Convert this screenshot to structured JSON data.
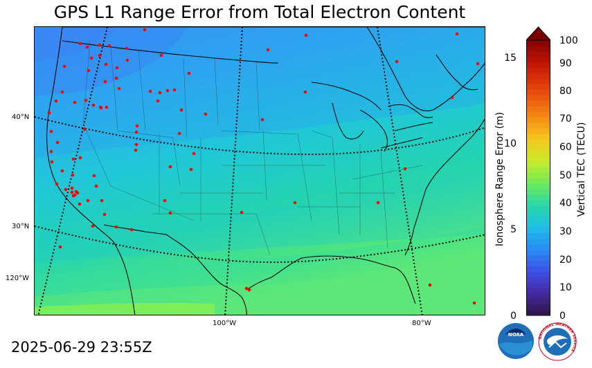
{
  "title": "GPS L1 Range Error from Total Electron Content",
  "timestamp": "2025-06-29 23:55Z",
  "map": {
    "lat_labels": [
      {
        "text": "40°N"
      },
      {
        "text": "30°N"
      },
      {
        "text": "120°W"
      }
    ],
    "lon_labels": [
      {
        "text": "100°W"
      },
      {
        "text": "80°W"
      }
    ],
    "station_color": "#ff0000"
  },
  "colorbar": {
    "left_label": "Ionosphere Range Error (m)",
    "right_label": "Vertical TEC (TECU)",
    "left_ticks": [
      "15",
      "10",
      "5",
      "0"
    ],
    "right_ticks": [
      "100",
      "90",
      "80",
      "70",
      "60",
      "50",
      "40",
      "30",
      "20",
      "10",
      "0"
    ],
    "range_error_max_m": 16.2,
    "tec_max": 100
  },
  "logos": {
    "noaa_text": "NOAA",
    "nws_text": "NATIONAL WEATHER SERVICE"
  }
}
